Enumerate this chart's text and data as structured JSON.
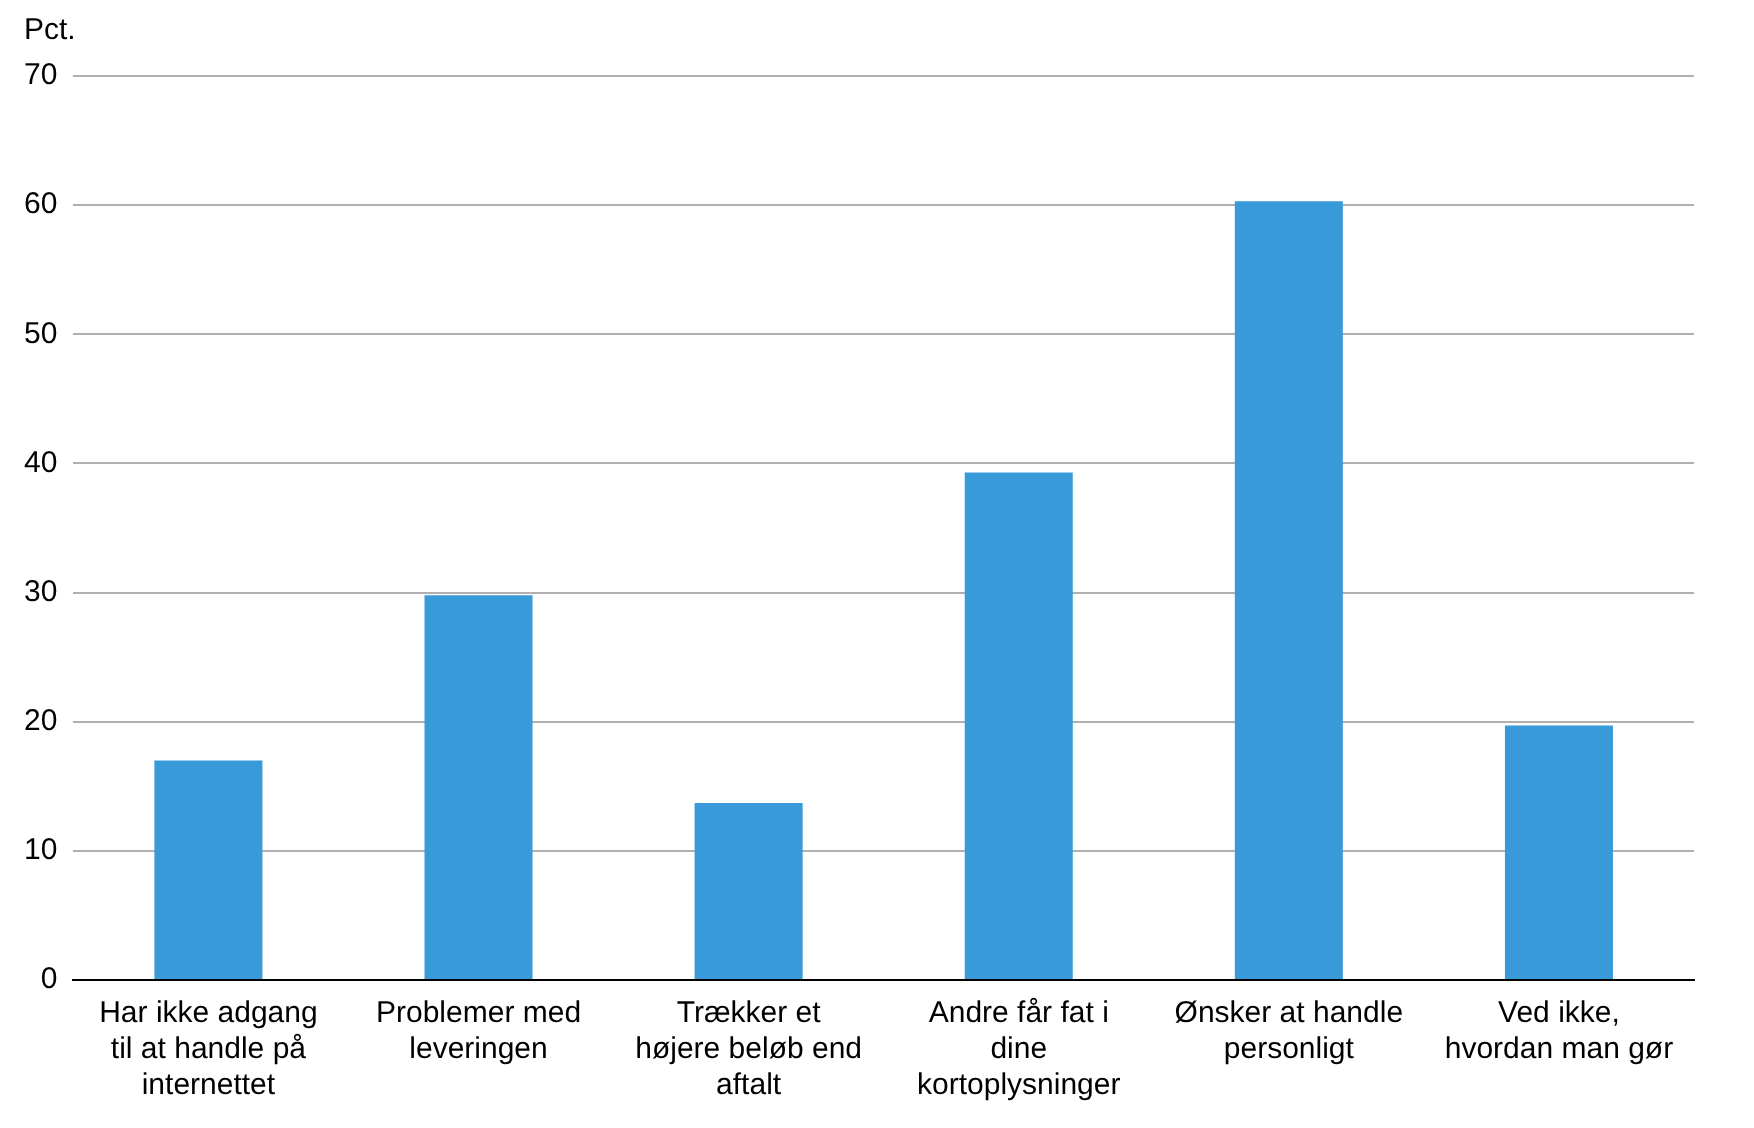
{
  "chart_data": {
    "type": "bar",
    "ylabel": "Pct.",
    "categories": [
      "Har ikke adgang til at handle på internettet",
      "Problemer med leveringen",
      "Trækker et højere beløb end aftalt",
      "Andre får fat i dine kortoplysninger",
      "Ønsker at handle personligt",
      "Ved ikke, hvordan man gør"
    ],
    "values": [
      17,
      29.8,
      13.7,
      39.3,
      60.3,
      19.7
    ],
    "color": "#389ad9",
    "ylim": [
      0,
      70
    ],
    "yticks": [
      0,
      10,
      20,
      30,
      40,
      50,
      60,
      70
    ],
    "grid": "y",
    "legend": false
  }
}
